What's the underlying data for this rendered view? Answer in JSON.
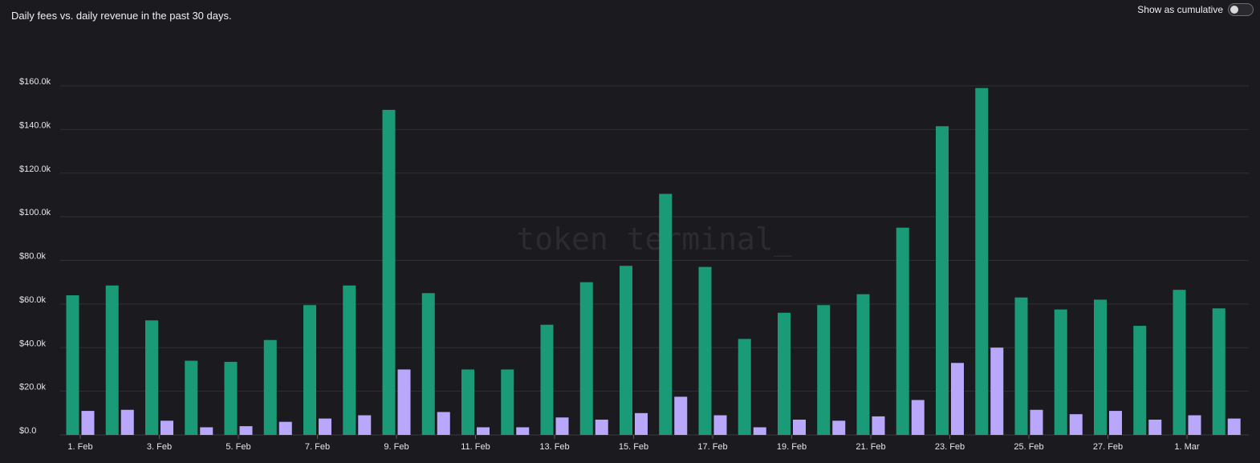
{
  "header": {
    "title": "Daily fees vs. daily revenue in the past 30 days.",
    "toggle_label": "Show as cumulative",
    "toggle_on": false
  },
  "watermark": "token terminal_",
  "colors": {
    "fees": "#1a9a76",
    "revenue": "#b9a7fb",
    "background": "#1b1a1f",
    "grid": "#303036"
  },
  "chart_data": {
    "type": "bar",
    "title": "Daily fees vs. daily revenue in the past 30 days.",
    "categories": [
      "1. Feb",
      "2. Feb",
      "3. Feb",
      "4. Feb",
      "5. Feb",
      "6. Feb",
      "7. Feb",
      "8. Feb",
      "9. Feb",
      "10. Feb",
      "11. Feb",
      "12. Feb",
      "13. Feb",
      "14. Feb",
      "15. Feb",
      "16. Feb",
      "17. Feb",
      "18. Feb",
      "19. Feb",
      "20. Feb",
      "21. Feb",
      "22. Feb",
      "23. Feb",
      "24. Feb",
      "25. Feb",
      "26. Feb",
      "27. Feb",
      "28. Feb",
      "1. Mar",
      "2. Mar"
    ],
    "x_tick_labels": [
      "1. Feb",
      "3. Feb",
      "5. Feb",
      "7. Feb",
      "9. Feb",
      "11. Feb",
      "13. Feb",
      "15. Feb",
      "17. Feb",
      "19. Feb",
      "21. Feb",
      "23. Feb",
      "25. Feb",
      "27. Feb",
      "1. Mar"
    ],
    "series": [
      {
        "values": [
          64000,
          68500,
          52500,
          34000,
          33500,
          43500,
          59500,
          68500,
          149000,
          65000,
          30000,
          30000,
          50500,
          70000,
          77500,
          110500,
          77000,
          44000,
          56000,
          59500,
          64500,
          95000,
          141500,
          159000,
          63000,
          57500,
          62000,
          50000,
          66500,
          58000
        ]
      },
      {
        "values": [
          11000,
          11500,
          6500,
          3500,
          4000,
          6000,
          7500,
          9000,
          30000,
          10500,
          3500,
          3500,
          8000,
          7000,
          10000,
          17500,
          9000,
          3500,
          7000,
          6500,
          8500,
          16000,
          33000,
          40000,
          11500,
          9500,
          11000,
          7000,
          9000,
          7500
        ]
      }
    ],
    "y_ticks": [
      0,
      20000,
      40000,
      60000,
      80000,
      100000,
      120000,
      140000,
      160000
    ],
    "y_tick_labels": [
      "$0.0",
      "$20.0k",
      "$40.0k",
      "$60.0k",
      "$80.0k",
      "$100.0k",
      "$120.0k",
      "$140.0k",
      "$160.0k"
    ],
    "ylim": [
      0,
      160000
    ],
    "xlabel": "",
    "ylabel": "",
    "grid": true,
    "legend": "none"
  }
}
